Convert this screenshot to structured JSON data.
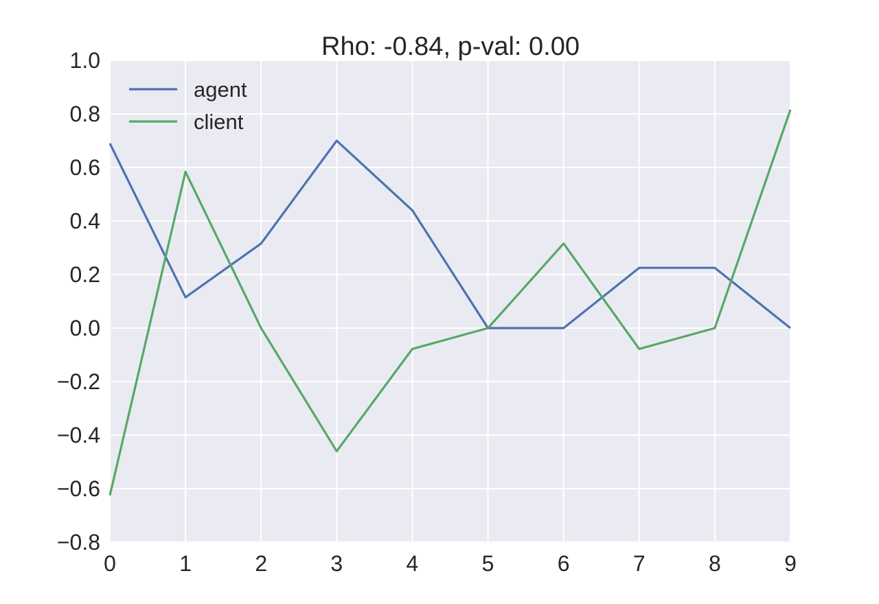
{
  "chart_data": {
    "type": "line",
    "title": "Rho: -0.84, p-val: 0.00",
    "xlabel": "",
    "ylabel": "",
    "x": [
      0,
      1,
      2,
      3,
      4,
      5,
      6,
      7,
      8,
      9
    ],
    "xlim": [
      0,
      9
    ],
    "ylim": [
      -0.8,
      1.0
    ],
    "xticks": [
      0,
      1,
      2,
      3,
      4,
      5,
      6,
      7,
      8,
      9
    ],
    "yticks": [
      -0.8,
      -0.6,
      -0.4,
      -0.2,
      0.0,
      0.2,
      0.4,
      0.6,
      0.8,
      1.0
    ],
    "ytick_labels": [
      "−0.8",
      "−0.6",
      "−0.4",
      "−0.2",
      "0.0",
      "0.2",
      "0.4",
      "0.6",
      "0.8",
      "1.0"
    ],
    "grid": true,
    "legend_position": "top-left",
    "background_color": "#eaeaf2",
    "grid_color": "#ffffff",
    "series": [
      {
        "name": "agent",
        "color": "#4c72b0",
        "values": [
          0.69,
          0.115,
          0.316,
          0.7,
          0.44,
          0.0,
          0.0,
          0.225,
          0.225,
          0.0
        ]
      },
      {
        "name": "client",
        "color": "#55a868",
        "values": [
          -0.625,
          0.584,
          0.0,
          -0.46,
          -0.078,
          0.0,
          0.316,
          -0.078,
          0.0,
          0.816
        ]
      }
    ]
  }
}
